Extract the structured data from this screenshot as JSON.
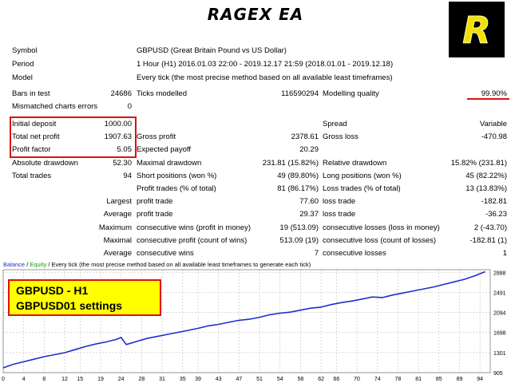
{
  "title": "RAGEX EA",
  "logo_letter": "R",
  "report": {
    "symbol_label": "Symbol",
    "symbol_value": "GBPUSD (Great Britain Pound vs US Dollar)",
    "period_label": "Period",
    "period_value": "1 Hour (H1) 2016.01.03 22:00 - 2019.12.17 21:59 (2018.01.01 - 2019.12.18)",
    "model_label": "Model",
    "model_value": "Every tick (the most precise method based on all available least timeframes)",
    "bars_label": "Bars in test",
    "bars_value": "24686",
    "ticks_label": "Ticks modelled",
    "ticks_value": "116590294",
    "quality_label": "Modelling quality",
    "quality_value": "99.90%",
    "mismatch_label": "Mismatched charts errors",
    "mismatch_value": "0",
    "initial_label": "Initial deposit",
    "initial_value": "1000.00",
    "spread_label": "Spread",
    "spread_value": "Variable",
    "netprofit_label": "Total net profit",
    "netprofit_value": "1907.63",
    "grossprofit_label": "Gross profit",
    "grossprofit_value": "2378.61",
    "grossloss_label": "Gross loss",
    "grossloss_value": "-470.98",
    "pf_label": "Profit factor",
    "pf_value": "5.05",
    "payoff_label": "Expected payoff",
    "payoff_value": "20.29",
    "absdd_label": "Absolute drawdown",
    "absdd_value": "52.30",
    "maxdd_label": "Maximal drawdown",
    "maxdd_value": "231.81 (15.82%)",
    "reldd_label": "Relative drawdown",
    "reldd_value": "15.82% (231.81)",
    "trades_label": "Total trades",
    "trades_value": "94",
    "short_label": "Short positions (won %)",
    "short_value": "49 (89.80%)",
    "long_label": "Long positions (won %)",
    "long_value": "45 (82.22%)",
    "pt_label": "Profit trades (% of total)",
    "pt_value": "81 (86.17%)",
    "lt_label": "Loss trades (% of total)",
    "lt_value": "13 (13.83%)",
    "largest_label": "Largest",
    "largest_profit_label": "profit trade",
    "largest_profit_value": "77.60",
    "largest_loss_label": "loss trade",
    "largest_loss_value": "-182.81",
    "average_label": "Average",
    "average_profit_label": "profit trade",
    "average_profit_value": "29.37",
    "average_loss_label": "loss trade",
    "average_loss_value": "-36.23",
    "maximum_label": "Maximum",
    "max_cw_label": "consecutive wins (profit in money)",
    "max_cw_value": "19 (513.09)",
    "max_cl_label": "consecutive losses (loss in money)",
    "max_cl_value": "2 (-43.70)",
    "maximal_label": "Maximal",
    "maximal_cp_label": "consecutive profit (count of wins)",
    "maximal_cp_value": "513.09 (19)",
    "maximal_cl_label": "consecutive loss (count of losses)",
    "maximal_cl_value": "-182.81 (1)",
    "avg2_label": "Average",
    "avg_cw_label": "consecutive wins",
    "avg_cw_value": "7",
    "avg_cl_label": "consecutive losses",
    "avg_cl_value": "1"
  },
  "overlay": {
    "line1": "GBPUSD  - H1",
    "line2": "GBPUSD01 settings"
  },
  "chart_legend": {
    "balance": "Balance",
    "sep1": " / ",
    "equity": "Equity",
    "sep2": " / ",
    "desc": "Every tick (the most precise method based on all available least timeframes to generate each tick)"
  },
  "colors": {
    "balance": "#1f2fc8",
    "equity": "#10a010",
    "accent_red": "#e01010",
    "overlay_bg": "#ffff00"
  },
  "chart_data": {
    "type": "line",
    "title": "",
    "xlabel": "",
    "ylabel": "",
    "x_ticks": [
      "0",
      "4",
      "8",
      "12",
      "15",
      "19",
      "23",
      "27",
      "31",
      "35",
      "38",
      "42",
      "46",
      "50",
      "54",
      "58",
      "62",
      "65",
      "69",
      "73",
      "77",
      "81",
      "85",
      "89",
      "93"
    ],
    "x_tick_labels": [
      "0",
      "4",
      "8",
      "12",
      "15",
      "19",
      "24",
      "28",
      "31",
      "35",
      "39",
      "43",
      "47",
      "51",
      "54",
      "58",
      "62",
      "66",
      "70",
      "74",
      "78",
      "81",
      "85",
      "89",
      "94"
    ],
    "y_ticks": [
      905,
      1301,
      1698,
      2094,
      2491,
      2888
    ],
    "ylim": [
      905,
      2940
    ],
    "xlim": [
      0,
      95
    ],
    "grid": true,
    "series": [
      {
        "name": "Balance",
        "color": "#1f2fc8",
        "x": [
          0,
          2,
          4,
          6,
          8,
          10,
          12,
          14,
          16,
          18,
          20,
          22,
          23,
          24,
          26,
          28,
          30,
          32,
          34,
          36,
          38,
          40,
          42,
          44,
          46,
          48,
          50,
          52,
          54,
          56,
          58,
          60,
          62,
          64,
          66,
          68,
          70,
          72,
          74,
          76,
          78,
          80,
          82,
          84,
          86,
          88,
          90,
          92,
          94
        ],
        "y": [
          1000,
          1070,
          1120,
          1170,
          1220,
          1260,
          1300,
          1360,
          1420,
          1470,
          1510,
          1560,
          1600,
          1460,
          1520,
          1580,
          1620,
          1660,
          1700,
          1740,
          1780,
          1830,
          1860,
          1900,
          1940,
          1960,
          2000,
          2050,
          2080,
          2100,
          2140,
          2180,
          2200,
          2250,
          2290,
          2320,
          2360,
          2400,
          2390,
          2440,
          2480,
          2520,
          2560,
          2600,
          2650,
          2700,
          2750,
          2820,
          2900
        ]
      }
    ]
  }
}
